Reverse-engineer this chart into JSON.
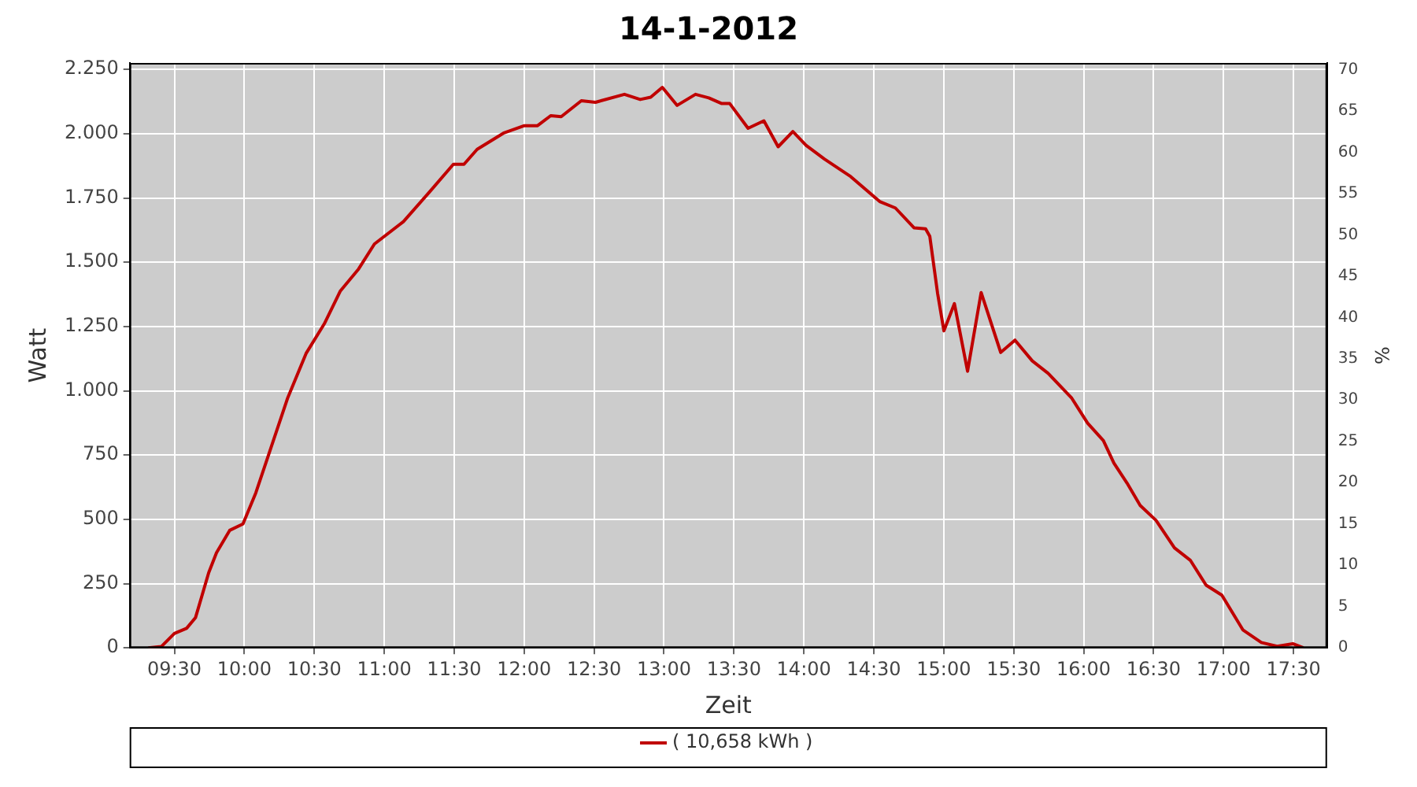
{
  "chart_data": {
    "type": "line",
    "title": "14-1-2012",
    "xlabel": "Zeit",
    "ylabel": "Watt",
    "y2label": "%",
    "x": [
      9.313,
      9.406,
      9.5,
      9.587,
      9.651,
      9.745,
      9.801,
      9.895,
      9.99,
      10.082,
      10.177,
      10.309,
      10.441,
      10.572,
      10.685,
      10.817,
      10.93,
      11.137,
      11.325,
      11.494,
      11.57,
      11.664,
      11.852,
      12.002,
      12.096,
      12.19,
      12.265,
      12.409,
      12.51,
      12.717,
      12.83,
      12.905,
      12.988,
      13.094,
      13.225,
      13.32,
      13.413,
      13.47,
      13.601,
      13.714,
      13.816,
      13.921,
      14.015,
      14.147,
      14.335,
      14.542,
      14.654,
      14.787,
      14.87,
      14.9,
      14.956,
      15.001,
      15.076,
      15.17,
      15.267,
      15.407,
      15.509,
      15.633,
      15.746,
      15.915,
      16.028,
      16.141,
      16.216,
      16.31,
      16.404,
      16.517,
      16.649,
      16.762,
      16.875,
      16.988,
      17.138,
      17.27,
      17.383,
      17.495,
      17.571
    ],
    "series": [
      {
        "name": "( 10,658 kWh )",
        "color": "#c00000",
        "values": [
          0,
          5,
          56,
          76,
          118,
          292,
          370,
          457,
          482,
          603,
          757,
          971,
          1145,
          1261,
          1387,
          1474,
          1571,
          1658,
          1774,
          1881,
          1881,
          1939,
          2002,
          2031,
          2031,
          2070,
          2066,
          2128,
          2122,
          2153,
          2133,
          2142,
          2180,
          2110,
          2153,
          2139,
          2117,
          2117,
          2021,
          2050,
          1949,
          2008,
          1955,
          1901,
          1833,
          1736,
          1711,
          1634,
          1630,
          1601,
          1378,
          1233,
          1339,
          1076,
          1382,
          1149,
          1197,
          1116,
          1068,
          971,
          874,
          806,
          719,
          641,
          554,
          496,
          389,
          341,
          244,
          205,
          70,
          21,
          6,
          16,
          0
        ]
      }
    ],
    "xlim": [
      9.18,
      17.74
    ],
    "xticks": [
      {
        "value": 9.5,
        "label": "09:30"
      },
      {
        "value": 10,
        "label": "10:00"
      },
      {
        "value": 10.5,
        "label": "10:30"
      },
      {
        "value": 11,
        "label": "11:00"
      },
      {
        "value": 11.5,
        "label": "11:30"
      },
      {
        "value": 12,
        "label": "12:00"
      },
      {
        "value": 12.5,
        "label": "12:30"
      },
      {
        "value": 13,
        "label": "13:00"
      },
      {
        "value": 13.5,
        "label": "13:30"
      },
      {
        "value": 14,
        "label": "14:00"
      },
      {
        "value": 14.5,
        "label": "14:30"
      },
      {
        "value": 15,
        "label": "15:00"
      },
      {
        "value": 15.5,
        "label": "15:30"
      },
      {
        "value": 16,
        "label": "16:00"
      },
      {
        "value": 16.5,
        "label": "16:30"
      },
      {
        "value": 17,
        "label": "17:00"
      },
      {
        "value": 17.5,
        "label": "17:30"
      }
    ],
    "ylim": [
      0,
      2275
    ],
    "yticks": [
      0,
      250,
      500,
      750,
      {
        "value": 1000,
        "label": "1.000"
      },
      {
        "value": 1250,
        "label": "1.250"
      },
      {
        "value": 1500,
        "label": "1.500"
      },
      {
        "value": 1750,
        "label": "1.750"
      },
      {
        "value": 2000,
        "label": "2.000"
      },
      {
        "value": 2250,
        "label": "2.250"
      }
    ],
    "y2lim": [
      0,
      70.8
    ],
    "y2ticks": [
      0,
      5,
      10,
      15,
      20,
      25,
      30,
      35,
      40,
      45,
      50,
      55,
      60,
      65,
      70
    ],
    "grid": true,
    "legend": "bottom",
    "marker": "none",
    "line_style": "solid"
  }
}
